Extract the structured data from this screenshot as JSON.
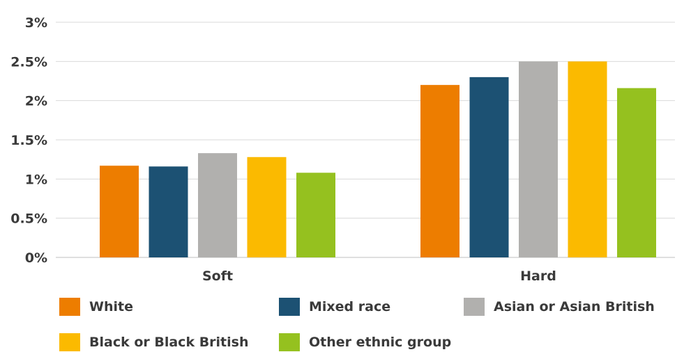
{
  "chart_data": {
    "type": "bar",
    "categories": [
      "Soft",
      "Hard"
    ],
    "series": [
      {
        "name": "White",
        "color": "#ed7d00",
        "values": [
          1.17,
          2.2
        ]
      },
      {
        "name": "Mixed race",
        "color": "#1c5173",
        "values": [
          1.16,
          2.3
        ]
      },
      {
        "name": "Asian or Asian British",
        "color": "#b1b0ae",
        "values": [
          1.33,
          2.5
        ]
      },
      {
        "name": "Black or Black British",
        "color": "#fbba00",
        "values": [
          1.28,
          2.5
        ]
      },
      {
        "name": "Other ethnic group",
        "color": "#95c11f",
        "values": [
          1.08,
          2.16
        ]
      }
    ],
    "ylim": [
      0,
      3
    ],
    "yticks": [
      0,
      0.5,
      1,
      1.5,
      2,
      2.5,
      3
    ],
    "ytick_labels": [
      "0%",
      "0.5%",
      "1%",
      "1.5%",
      "2%",
      "2.5%",
      "3%"
    ],
    "grid": true,
    "legend_position": "bottom",
    "title": "",
    "xlabel": "",
    "ylabel": ""
  }
}
